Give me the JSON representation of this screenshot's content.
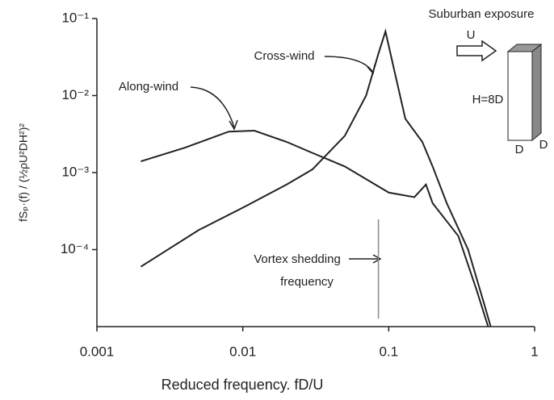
{
  "chart_data": {
    "type": "line",
    "log_x": true,
    "log_y": true,
    "xlabel": "Reduced frequency. fD/U",
    "ylabel": "fSₚ·(f) / (½ρU²DH²)²",
    "xlim": [
      0.001,
      1
    ],
    "xticks": [
      0.001,
      0.01,
      0.1,
      1
    ],
    "ylim": [
      1e-05,
      0.1
    ],
    "yticks": [
      {
        "value": 0.0001,
        "label": "10⁻⁴"
      },
      {
        "value": 0.001,
        "label": "10⁻³"
      },
      {
        "value": 0.01,
        "label": "10⁻²"
      },
      {
        "value": 0.1,
        "label": "10⁻¹"
      }
    ],
    "series": [
      {
        "name": "Along-wind",
        "color": "#222222",
        "x": [
          0.002,
          0.004,
          0.008,
          0.012,
          0.02,
          0.03,
          0.05,
          0.1,
          0.15,
          0.18,
          0.2,
          0.3,
          0.4,
          0.48
        ],
        "values": [
          0.0014,
          0.0021,
          0.0034,
          0.0035,
          0.0025,
          0.0018,
          0.0012,
          0.00055,
          0.00048,
          0.0007,
          0.0004,
          0.00015,
          3e-05,
          1e-05
        ]
      },
      {
        "name": "Cross-wind",
        "color": "#222222",
        "x": [
          0.002,
          0.005,
          0.01,
          0.02,
          0.03,
          0.05,
          0.07,
          0.085,
          0.095,
          0.11,
          0.13,
          0.17,
          0.2,
          0.25,
          0.35,
          0.45,
          0.5
        ],
        "values": [
          6e-05,
          0.00018,
          0.00035,
          0.0007,
          0.0011,
          0.003,
          0.01,
          0.035,
          0.068,
          0.02,
          0.005,
          0.0025,
          0.0012,
          0.0004,
          0.0001,
          2e-05,
          1e-05
        ]
      }
    ],
    "vortex_shedding": {
      "label_lines": [
        "Vortex shedding",
        "frequency"
      ],
      "x": 0.085
    }
  },
  "inset": {
    "title": "Suburban exposure",
    "wind": "U",
    "height": "H=8D",
    "width": "D",
    "depth": "D"
  }
}
